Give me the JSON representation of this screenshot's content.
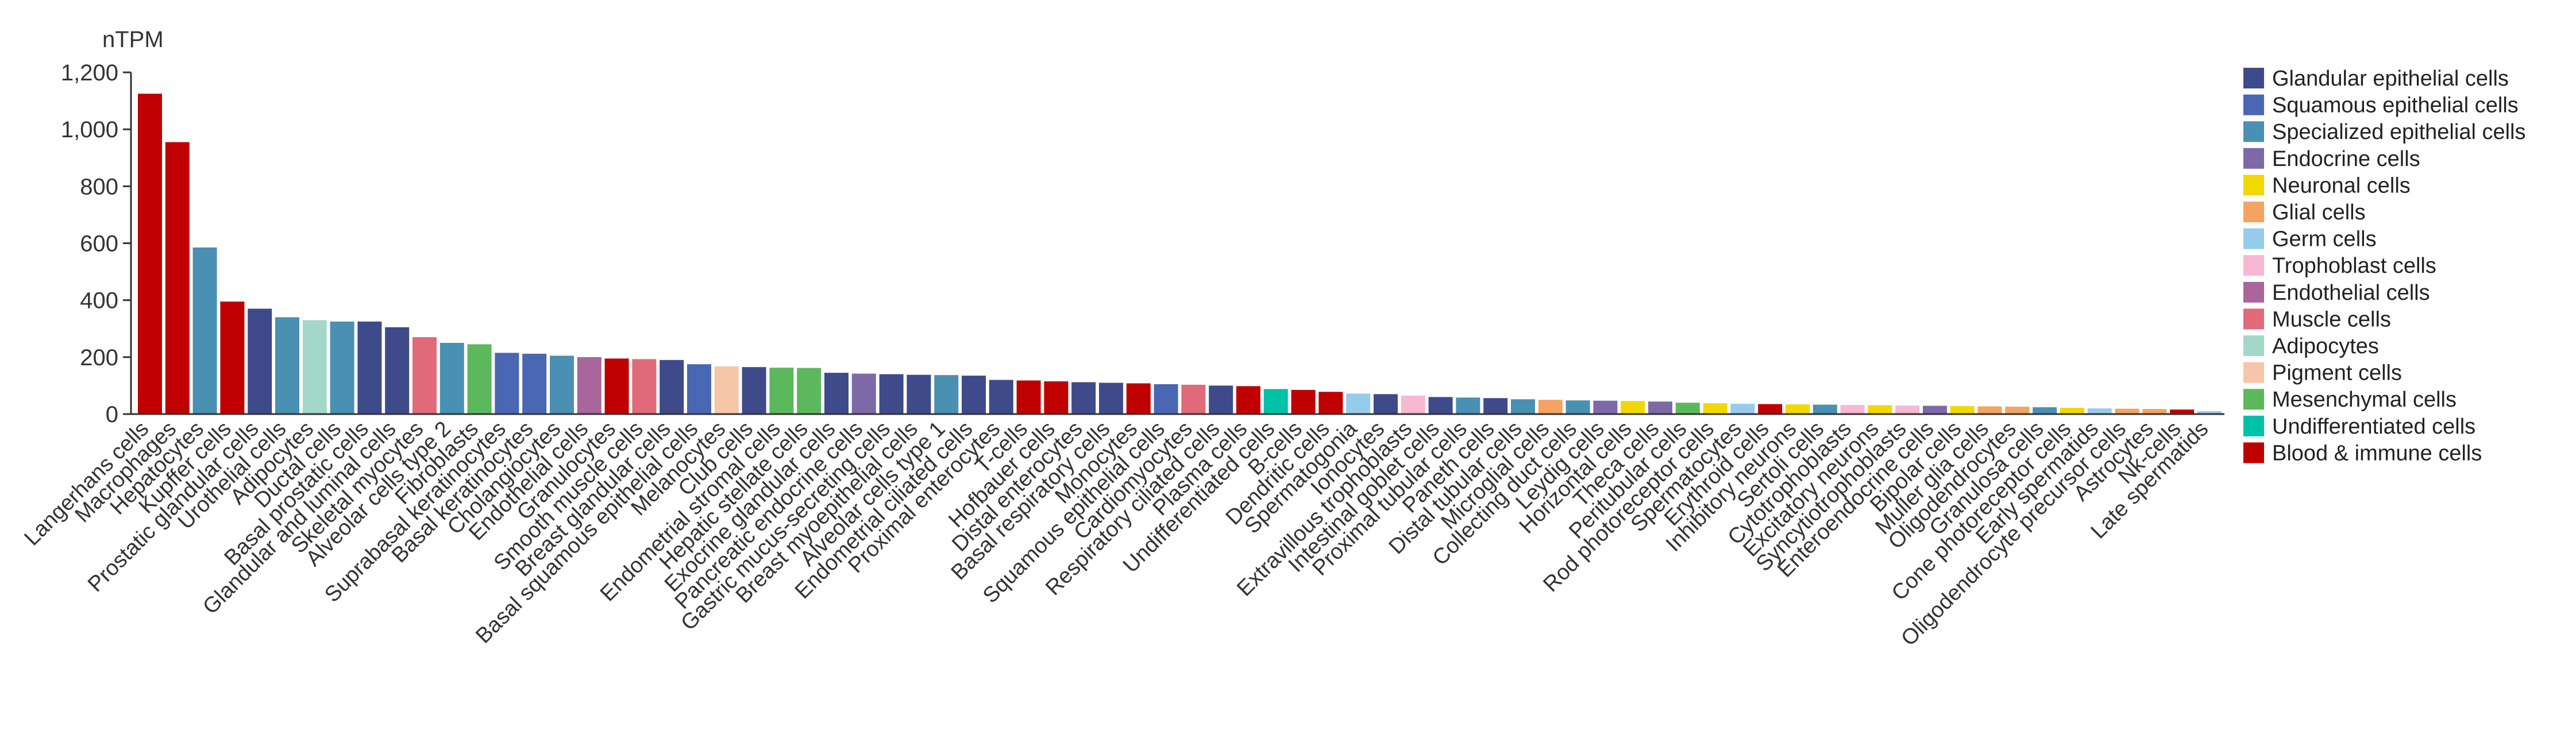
{
  "chart_data": {
    "type": "bar",
    "unit": "nTPM",
    "ylim": [
      0,
      1200
    ],
    "yticks": [
      "0",
      "200",
      "400",
      "600",
      "800",
      "1,000",
      "1,200"
    ],
    "grid": false,
    "legend_position": "right",
    "legend": [
      {
        "group": "Glandular epithelial cells",
        "color": "#3f4a8a"
      },
      {
        "group": "Squamous epithelial cells",
        "color": "#4a67b4"
      },
      {
        "group": "Specialized epithelial cells",
        "color": "#4a90b2"
      },
      {
        "group": "Endocrine cells",
        "color": "#7d68a8"
      },
      {
        "group": "Neuronal cells",
        "color": "#f0d800"
      },
      {
        "group": "Glial cells",
        "color": "#f4a460"
      },
      {
        "group": "Germ cells",
        "color": "#96ccea"
      },
      {
        "group": "Trophoblast cells",
        "color": "#f7b8d4"
      },
      {
        "group": "Endothelial cells",
        "color": "#a8669a"
      },
      {
        "group": "Muscle cells",
        "color": "#e06a78"
      },
      {
        "group": "Adipocytes",
        "color": "#a3d8c8"
      },
      {
        "group": "Pigment cells",
        "color": "#f7c6a8"
      },
      {
        "group": "Mesenchymal cells",
        "color": "#5cb85c"
      },
      {
        "group": "Undifferentiated cells",
        "color": "#00c2a8"
      },
      {
        "group": "Blood & immune cells",
        "color": "#c00000"
      }
    ],
    "bars": [
      {
        "label": "Langerhans cells",
        "value": 1125,
        "group": 14
      },
      {
        "label": "Macrophages",
        "value": 955,
        "group": 14
      },
      {
        "label": "Hepatocytes",
        "value": 585,
        "group": 2
      },
      {
        "label": "Kupffer cells",
        "value": 395,
        "group": 14
      },
      {
        "label": "Prostatic glandular cells",
        "value": 370,
        "group": 0
      },
      {
        "label": "Urothelial cells",
        "value": 340,
        "group": 2
      },
      {
        "label": "Adipocytes",
        "value": 330,
        "group": 10
      },
      {
        "label": "Ductal cells",
        "value": 325,
        "group": 2
      },
      {
        "label": "Basal prostatic cells",
        "value": 325,
        "group": 0
      },
      {
        "label": "Glandular and luminal cells",
        "value": 305,
        "group": 0
      },
      {
        "label": "Skeletal myocytes",
        "value": 270,
        "group": 9
      },
      {
        "label": "Alveolar cells type 2",
        "value": 250,
        "group": 2
      },
      {
        "label": "Fibroblasts",
        "value": 245,
        "group": 12
      },
      {
        "label": "Suprabasal keratinocytes",
        "value": 215,
        "group": 1
      },
      {
        "label": "Basal keratinocytes",
        "value": 212,
        "group": 1
      },
      {
        "label": "Cholangiocytes",
        "value": 205,
        "group": 2
      },
      {
        "label": "Endothelial cells",
        "value": 200,
        "group": 8
      },
      {
        "label": "Granulocytes",
        "value": 195,
        "group": 14
      },
      {
        "label": "Smooth muscle cells",
        "value": 193,
        "group": 9
      },
      {
        "label": "Breast glandular cells",
        "value": 190,
        "group": 0
      },
      {
        "label": "Basal squamous epithelial cells",
        "value": 175,
        "group": 1
      },
      {
        "label": "Melanocytes",
        "value": 168,
        "group": 11
      },
      {
        "label": "Club cells",
        "value": 165,
        "group": 0
      },
      {
        "label": "Endometrial stromal cells",
        "value": 163,
        "group": 12
      },
      {
        "label": "Hepatic stellate cells",
        "value": 162,
        "group": 12
      },
      {
        "label": "Exocrine glandular cells",
        "value": 145,
        "group": 0
      },
      {
        "label": "Pancreatic endocrine cells",
        "value": 142,
        "group": 3
      },
      {
        "label": "Gastric mucus-secreting cells",
        "value": 140,
        "group": 0
      },
      {
        "label": "Breast myoepithelial cells",
        "value": 138,
        "group": 0
      },
      {
        "label": "Alveolar cells type 1",
        "value": 137,
        "group": 2
      },
      {
        "label": "Endometrial ciliated cells",
        "value": 135,
        "group": 0
      },
      {
        "label": "Proximal enterocytes",
        "value": 120,
        "group": 0
      },
      {
        "label": "T-cells",
        "value": 118,
        "group": 14
      },
      {
        "label": "Hofbauer cells",
        "value": 115,
        "group": 14
      },
      {
        "label": "Distal enterocytes",
        "value": 112,
        "group": 0
      },
      {
        "label": "Basal respiratory cells",
        "value": 110,
        "group": 0
      },
      {
        "label": "Monocytes",
        "value": 108,
        "group": 14
      },
      {
        "label": "Squamous epithelial cells",
        "value": 105,
        "group": 1
      },
      {
        "label": "Cardiomyocytes",
        "value": 103,
        "group": 9
      },
      {
        "label": "Respiratory ciliated cells",
        "value": 100,
        "group": 0
      },
      {
        "label": "Plasma cells",
        "value": 98,
        "group": 14
      },
      {
        "label": "Undifferentiated cells",
        "value": 88,
        "group": 13
      },
      {
        "label": "B-cells",
        "value": 85,
        "group": 14
      },
      {
        "label": "Dendritic cells",
        "value": 78,
        "group": 14
      },
      {
        "label": "Spermatogonia",
        "value": 72,
        "group": 6
      },
      {
        "label": "Ionocytes",
        "value": 70,
        "group": 0
      },
      {
        "label": "Extravillous trophoblasts",
        "value": 65,
        "group": 7
      },
      {
        "label": "Intestinal goblet cells",
        "value": 60,
        "group": 0
      },
      {
        "label": "Proximal tubular cells",
        "value": 58,
        "group": 2
      },
      {
        "label": "Paneth cells",
        "value": 56,
        "group": 0
      },
      {
        "label": "Distal tubular cells",
        "value": 52,
        "group": 2
      },
      {
        "label": "Microglial cells",
        "value": 50,
        "group": 5
      },
      {
        "label": "Collecting duct cells",
        "value": 48,
        "group": 2
      },
      {
        "label": "Leydig cells",
        "value": 47,
        "group": 3
      },
      {
        "label": "Horizontal cells",
        "value": 46,
        "group": 4
      },
      {
        "label": "Theca cells",
        "value": 44,
        "group": 3
      },
      {
        "label": "Peritubular cells",
        "value": 40,
        "group": 12
      },
      {
        "label": "Rod photoreceptor cells",
        "value": 38,
        "group": 4
      },
      {
        "label": "Spermatocytes",
        "value": 36,
        "group": 6
      },
      {
        "label": "Erythroid cells",
        "value": 35,
        "group": 14
      },
      {
        "label": "Inhibitory neurons",
        "value": 34,
        "group": 4
      },
      {
        "label": "Sertoli cells",
        "value": 33,
        "group": 2
      },
      {
        "label": "Cytotrophoblasts",
        "value": 32,
        "group": 7
      },
      {
        "label": "Excitatory neurons",
        "value": 31,
        "group": 4
      },
      {
        "label": "Syncytiotrophoblasts",
        "value": 30,
        "group": 7
      },
      {
        "label": "Enteroendocrine cells",
        "value": 29,
        "group": 3
      },
      {
        "label": "Bipolar cells",
        "value": 28,
        "group": 4
      },
      {
        "label": "Muller glia cells",
        "value": 27,
        "group": 5
      },
      {
        "label": "Oligodendrocytes",
        "value": 26,
        "group": 5
      },
      {
        "label": "Granulosa cells",
        "value": 24,
        "group": 2
      },
      {
        "label": "Cone photoreceptor cells",
        "value": 22,
        "group": 4
      },
      {
        "label": "Early spermatids",
        "value": 20,
        "group": 6
      },
      {
        "label": "Oligodendrocyte precursor cells",
        "value": 19,
        "group": 5
      },
      {
        "label": "Astrocytes",
        "value": 18,
        "group": 5
      },
      {
        "label": "Nk-cells",
        "value": 16,
        "group": 14
      },
      {
        "label": "Late spermatids",
        "value": 10,
        "group": 6
      }
    ]
  }
}
